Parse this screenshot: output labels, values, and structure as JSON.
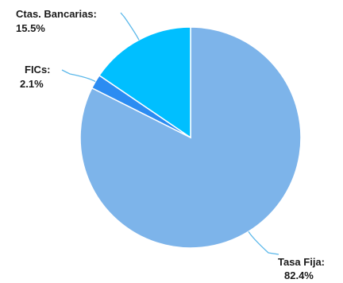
{
  "chart_data": {
    "type": "pie",
    "slices": [
      {
        "name": "Tasa Fija",
        "label": "Tasa Fija:",
        "value": 82.4,
        "value_text": "82.4%",
        "color": "#7db4ea"
      },
      {
        "name": "FICs",
        "label": "FICs:",
        "value": 2.1,
        "value_text": "2.1%",
        "color": "#2b8cf2"
      },
      {
        "name": "Ctas. Bancarias",
        "label": "Ctas. Bancarias:",
        "value": 15.5,
        "value_text": "15.5%",
        "color": "#00bfff"
      }
    ],
    "start_angle": "top",
    "direction": "clockwise",
    "legend": "none",
    "leader_line_color": "#5bb8ea"
  }
}
